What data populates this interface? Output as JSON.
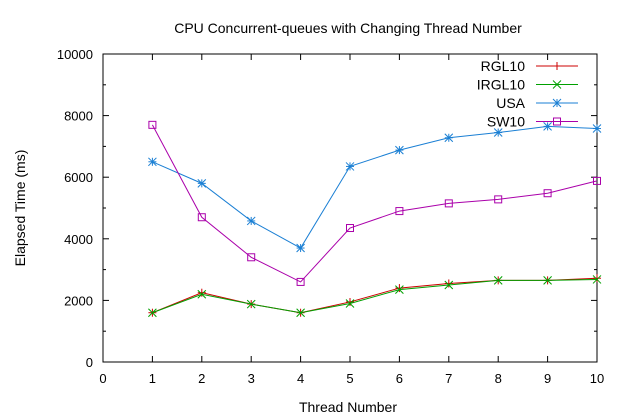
{
  "chart_data": {
    "type": "line",
    "title": "CPU Concurrent-queues with Changing Thread Number",
    "xlabel": "Thread Number",
    "ylabel": "Elapsed Time (ms)",
    "xlim": [
      0,
      10
    ],
    "ylim": [
      0,
      10000
    ],
    "x_ticks": [
      "0",
      "1",
      "2",
      "3",
      "4",
      "5",
      "6",
      "7",
      "8",
      "9",
      "10"
    ],
    "y_ticks": [
      "0",
      "2000",
      "4000",
      "6000",
      "8000",
      "10000"
    ],
    "grid": false,
    "legend_position": "top-right",
    "x": [
      1,
      2,
      3,
      4,
      5,
      6,
      7,
      8,
      9,
      10
    ],
    "series": [
      {
        "name": "RGL10",
        "color": "#cc0000",
        "marker": "plus",
        "values": [
          1600,
          2250,
          1880,
          1600,
          1950,
          2400,
          2550,
          2650,
          2650,
          2720
        ]
      },
      {
        "name": "IRGL10",
        "color": "#00a000",
        "marker": "cross",
        "values": [
          1600,
          2200,
          1880,
          1600,
          1900,
          2350,
          2500,
          2650,
          2650,
          2680
        ]
      },
      {
        "name": "USA",
        "color": "#1a7fd4",
        "marker": "star",
        "values": [
          6500,
          5800,
          4580,
          3700,
          6350,
          6880,
          7280,
          7450,
          7650,
          7580
        ]
      },
      {
        "name": "SW10",
        "color": "#aa00aa",
        "marker": "square",
        "values": [
          7700,
          4700,
          3400,
          2600,
          4350,
          4900,
          5150,
          5280,
          5480,
          5880
        ]
      }
    ]
  }
}
